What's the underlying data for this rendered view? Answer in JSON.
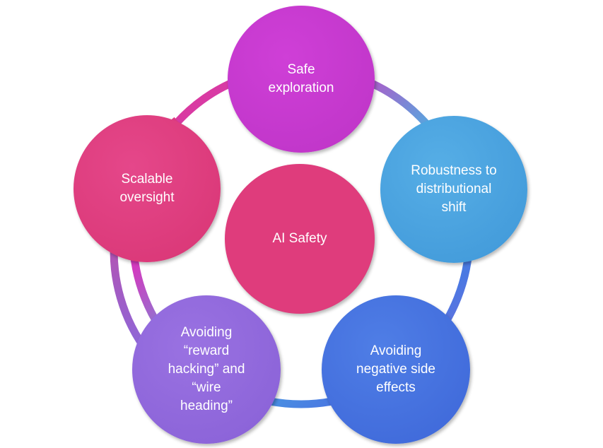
{
  "diagram": {
    "center": {
      "label": "AI Safety",
      "color": "#df3c7c"
    },
    "nodes": [
      {
        "id": "safe-exploration",
        "label": "Safe\nexploration",
        "color": "#c639cf"
      },
      {
        "id": "robustness",
        "label": "Robustness to\ndistributional\nshift",
        "color": "#4aa3e0"
      },
      {
        "id": "side-effects",
        "label": "Avoiding\nnegative side\neffects",
        "color": "#4472e0"
      },
      {
        "id": "reward-hacking",
        "label": "Avoiding\n“reward\nhacking” and\n“wire\nheading”",
        "color": "#9268dc"
      },
      {
        "id": "scalable-oversight",
        "label": "Scalable\noversight",
        "color": "#df3c7c"
      }
    ]
  }
}
